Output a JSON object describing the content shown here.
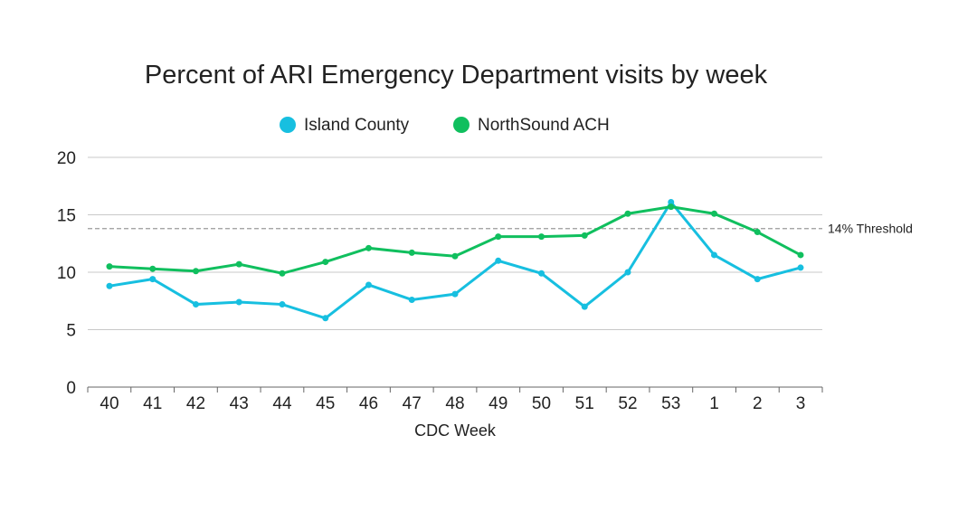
{
  "chart_data": {
    "type": "line",
    "title": "Percent of ARI Emergency Department visits by week",
    "xlabel": "CDC Week",
    "ylabel": "",
    "categories": [
      "40",
      "41",
      "42",
      "43",
      "44",
      "45",
      "46",
      "47",
      "48",
      "49",
      "50",
      "51",
      "52",
      "53",
      "1",
      "2",
      "3"
    ],
    "ylim": [
      0,
      20
    ],
    "yticks": [
      0,
      5,
      10,
      15,
      20
    ],
    "grid": true,
    "legend": "top",
    "series": [
      {
        "name": "Island County",
        "color": "#17bfe0",
        "values": [
          8.8,
          9.4,
          7.2,
          7.4,
          7.2,
          6.0,
          8.9,
          7.6,
          8.1,
          11.0,
          9.9,
          7.0,
          10.0,
          16.1,
          11.5,
          9.4,
          10.4
        ]
      },
      {
        "name": "NorthSound ACH",
        "color": "#10bf5e",
        "values": [
          10.5,
          10.3,
          10.1,
          10.7,
          9.9,
          10.9,
          12.1,
          11.7,
          11.4,
          13.1,
          13.1,
          13.2,
          15.1,
          15.7,
          15.1,
          13.5,
          11.5
        ]
      }
    ],
    "threshold": {
      "value": 13.8,
      "label": "14% Threshold",
      "color": "#999999"
    }
  }
}
